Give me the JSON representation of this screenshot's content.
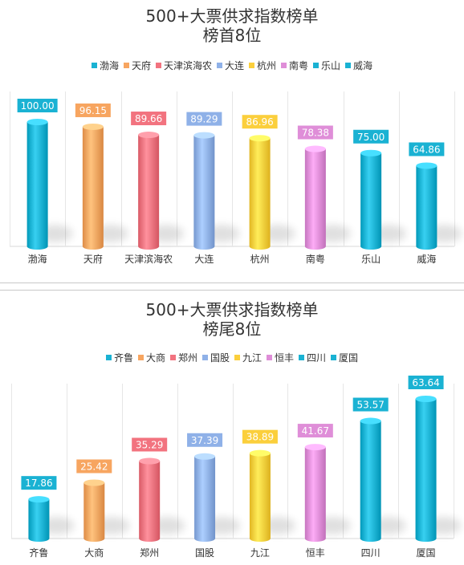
{
  "chart_data": [
    {
      "type": "bar",
      "title": "500+大票供求指数榜单",
      "subtitle": "榜首8位",
      "categories": [
        "渤海",
        "天府",
        "天津滨海农",
        "大连",
        "杭州",
        "南粤",
        "乐山",
        "威海"
      ],
      "values": [
        100.0,
        96.15,
        89.66,
        89.29,
        86.96,
        78.38,
        75.0,
        64.86
      ],
      "value_labels": [
        "100.00",
        "96.15",
        "89.66",
        "89.29",
        "86.96",
        "78.38",
        "75.00",
        "64.86"
      ],
      "colors": [
        "#1ab2d3",
        "#f7a560",
        "#f2737f",
        "#8fb1e8",
        "#fbcf3c",
        "#df8ed8",
        "#1ab2d3",
        "#1ab2d3"
      ],
      "ylim": [
        0,
        100
      ],
      "legend_position": "top-center",
      "grid": false
    },
    {
      "type": "bar",
      "title": "500+大票供求指数榜单",
      "subtitle": "榜尾8位",
      "categories": [
        "齐鲁",
        "大商",
        "郑州",
        "国股",
        "九江",
        "恒丰",
        "四川",
        "厦国"
      ],
      "values": [
        17.86,
        25.42,
        35.29,
        37.39,
        38.89,
        41.67,
        53.57,
        63.64
      ],
      "value_labels": [
        "17.86",
        "25.42",
        "35.29",
        "37.39",
        "38.89",
        "41.67",
        "53.57",
        "63.64"
      ],
      "colors": [
        "#1ab2d3",
        "#f7a560",
        "#f2737f",
        "#8fb1e8",
        "#fbcf3c",
        "#df8ed8",
        "#1ab2d3",
        "#1ab2d3"
      ],
      "ylim": [
        0,
        63.64
      ],
      "legend_position": "top-center",
      "grid": false
    }
  ]
}
